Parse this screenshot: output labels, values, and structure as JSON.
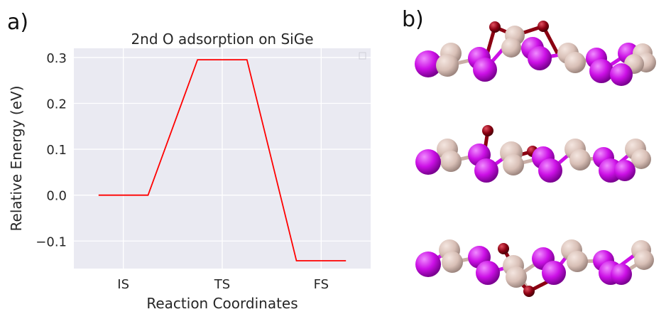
{
  "panels": {
    "a": "a)",
    "b": "b)"
  },
  "chart_data": {
    "type": "line",
    "title": "2nd O adsorption on SiGe",
    "xlabel": "Reaction Coordinates",
    "ylabel": "Relative Energy (eV)",
    "categories": [
      "IS",
      "TS",
      "FS"
    ],
    "yticks": [
      "0.3",
      "0.2",
      "0.1",
      "0.0",
      "−0.1"
    ],
    "ytick_values": [
      0.3,
      0.2,
      0.1,
      0.0,
      -0.1
    ],
    "xlim": [
      -0.5,
      2.5
    ],
    "ylim": [
      -0.16,
      0.32
    ],
    "grid": true,
    "legend": "top-right (empty)",
    "series": [
      {
        "color": "#ff0000",
        "points": [
          [
            -0.25,
            0.0
          ],
          [
            0.25,
            0.0
          ],
          [
            0.75,
            0.295
          ],
          [
            1.25,
            0.295
          ],
          [
            1.75,
            -0.143
          ],
          [
            2.25,
            -0.143
          ]
        ]
      }
    ]
  },
  "structures": {
    "colors": {
      "si_ge_light": "#d8bfb6",
      "si_ge_dark": "#cc10e6",
      "oxygen": "#8b0012"
    },
    "rows": 3
  }
}
